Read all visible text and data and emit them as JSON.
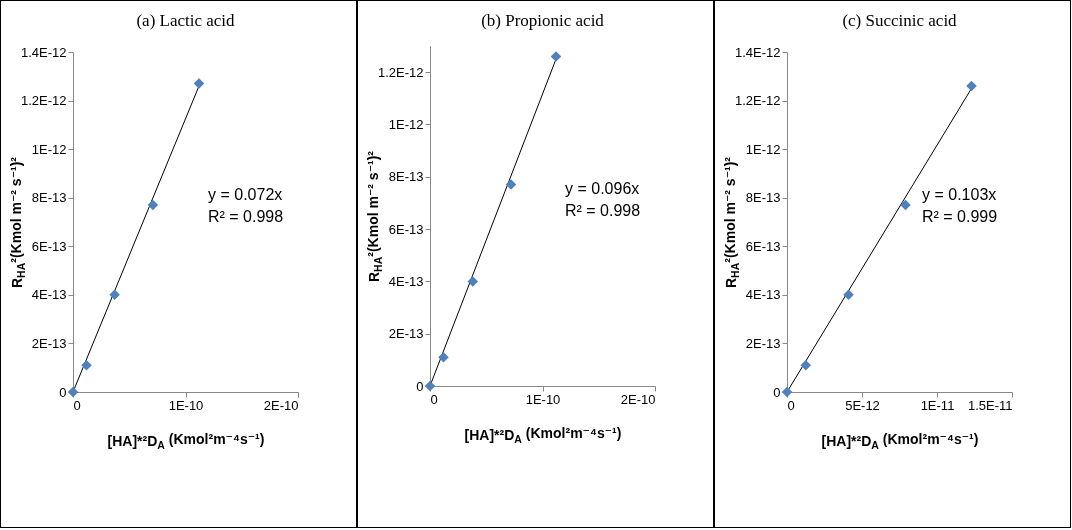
{
  "chart_data": [
    {
      "type": "scatter",
      "title": "(a)  Lactic acid",
      "xlabel": "[HA]*²D$_{A}$  (Kmol²m⁻⁴s⁻¹)",
      "ylabel": "R$_{HA}$²(Kmol m⁻² s⁻¹)²",
      "xlim": [
        0,
        2e-10
      ],
      "xticks": [
        {
          "value": 0,
          "label": "0"
        },
        {
          "value": 1e-10,
          "label": "1E-10"
        },
        {
          "value": 2e-10,
          "label": "2E-10"
        }
      ],
      "ylim": [
        0,
        1.4e-12
      ],
      "yticks": [
        {
          "value": 0,
          "label": "0"
        },
        {
          "value": 2e-13,
          "label": "2E-13"
        },
        {
          "value": 4e-13,
          "label": "4E-13"
        },
        {
          "value": 6e-13,
          "label": "6E-13"
        },
        {
          "value": 8e-13,
          "label": "8E-13"
        },
        {
          "value": 1e-12,
          "label": "1E-12"
        },
        {
          "value": 1.2e-12,
          "label": "1.2E-12"
        },
        {
          "value": 1.4e-12,
          "label": "1.4E-12"
        }
      ],
      "annotations": [
        "y = 0.072x",
        "R² = 0.998"
      ],
      "series": [
        {
          "color": "#4f81bd",
          "marker": "diamond",
          "x": [
            0,
            1.2e-11,
            3.7e-11,
            7.1e-11,
            1.12e-10
          ],
          "values": [
            0,
            1.1e-13,
            4e-13,
            7.7e-13,
            1.27e-12
          ]
        },
        {
          "type": "line",
          "color": "#000000",
          "marker": "none",
          "x": [
            0,
            1.12e-10
          ],
          "values": [
            0,
            1.26e-12
          ]
        }
      ]
    },
    {
      "type": "scatter",
      "title": "(b) Propionic acid",
      "xlabel": "[HA]*²D$_{A}$  (Kmol²m⁻⁴s⁻¹)",
      "ylabel": "R$_{HA}$²(Kmol m⁻² s⁻¹)²",
      "xlim": [
        0,
        2e-10
      ],
      "xticks": [
        {
          "value": 0,
          "label": "0"
        },
        {
          "value": 1e-10,
          "label": "1E-10"
        },
        {
          "value": 2e-10,
          "label": "2E-10"
        }
      ],
      "ylim": [
        0,
        1.3e-12
      ],
      "yticks": [
        {
          "value": 0,
          "label": "0"
        },
        {
          "value": 2e-13,
          "label": "2E-13"
        },
        {
          "value": 4e-13,
          "label": "4E-13"
        },
        {
          "value": 6e-13,
          "label": "6E-13"
        },
        {
          "value": 8e-13,
          "label": "8E-13"
        },
        {
          "value": 1e-12,
          "label": "1E-12"
        },
        {
          "value": 1.2e-12,
          "label": "1.2E-12"
        }
      ],
      "annotations": [
        "y = 0.096x",
        "R² = 0.998"
      ],
      "series": [
        {
          "color": "#4f81bd",
          "marker": "diamond",
          "x": [
            0,
            1.2e-11,
            3.8e-11,
            7.2e-11,
            1.12e-10
          ],
          "values": [
            0,
            1.1e-13,
            4e-13,
            7.7e-13,
            1.26e-12
          ]
        },
        {
          "type": "line",
          "color": "#000000",
          "marker": "none",
          "x": [
            0,
            1.12e-10
          ],
          "values": [
            0,
            1.25e-12
          ]
        }
      ]
    },
    {
      "type": "scatter",
      "title": "(c) Succinic acid",
      "xlabel": "[HA]*²D$_{A}$  (Kmol²m⁻⁴s⁻¹)",
      "ylabel": "R$_{HA}$²(Kmol m⁻² s⁻¹)²",
      "xlim": [
        0,
        1.5e-11
      ],
      "xticks": [
        {
          "value": 0,
          "label": "0"
        },
        {
          "value": 5e-12,
          "label": "5E-12"
        },
        {
          "value": 1e-11,
          "label": "1E-11"
        },
        {
          "value": 1.5e-11,
          "label": "1.5E-11"
        }
      ],
      "ylim": [
        0,
        1.4e-12
      ],
      "yticks": [
        {
          "value": 0,
          "label": "0"
        },
        {
          "value": 2e-13,
          "label": "2E-13"
        },
        {
          "value": 4e-13,
          "label": "4E-13"
        },
        {
          "value": 6e-13,
          "label": "6E-13"
        },
        {
          "value": 8e-13,
          "label": "8E-13"
        },
        {
          "value": 1e-12,
          "label": "1E-12"
        },
        {
          "value": 1.2e-12,
          "label": "1.2E-12"
        },
        {
          "value": 1.4e-12,
          "label": "1.4E-12"
        }
      ],
      "annotations": [
        "y = 0.103x",
        "R² = 0.999"
      ],
      "series": [
        {
          "color": "#4f81bd",
          "marker": "diamond",
          "x": [
            0,
            1.25e-12,
            4.1e-12,
            7.9e-12,
            1.23e-11
          ],
          "values": [
            0,
            1.1e-13,
            4e-13,
            7.7e-13,
            1.26e-12
          ]
        },
        {
          "type": "line",
          "color": "#000000",
          "marker": "none",
          "x": [
            0,
            1.23e-11
          ],
          "values": [
            0,
            1.25e-12
          ]
        }
      ]
    }
  ]
}
